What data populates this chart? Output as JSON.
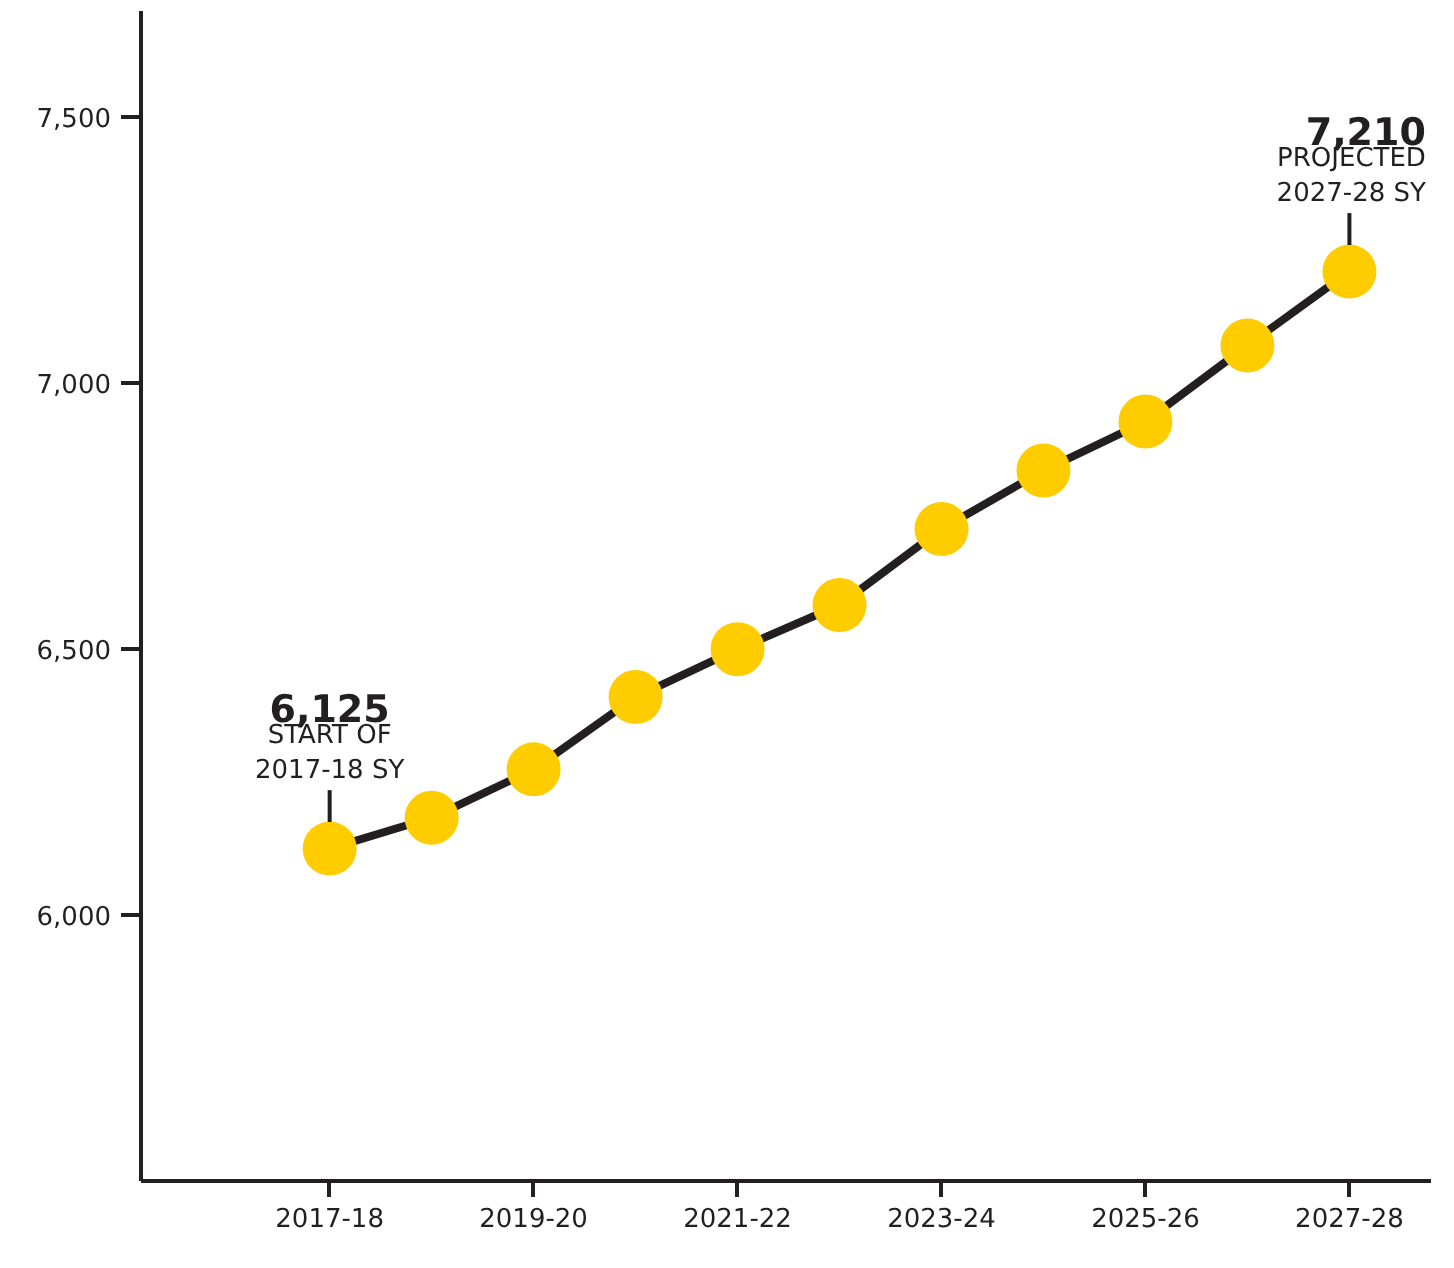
{
  "chart_data": {
    "type": "line",
    "categories": [
      "2017-18",
      null,
      "2019-20",
      null,
      "2021-22",
      null,
      "2023-24",
      null,
      "2025-26",
      null,
      "2027-28"
    ],
    "series": [
      {
        "color": "#231f20",
        "colors": [
          "#ffcc00",
          "#ffcc00",
          "#ffcc00",
          "#ffcc00",
          "#ffcc00",
          "#ffcc00",
          "#ffcc00",
          "#ffcc00",
          "#ffcc00",
          "#ffcc00",
          "#ffcc00"
        ],
        "values": [
          6125,
          6183,
          6274,
          6410,
          6500,
          6583,
          6726,
          6836,
          6928,
          7071,
          7210
        ]
      }
    ],
    "ylim": [
      5500,
      7700
    ],
    "yticks": [
      {
        "value": 6000,
        "label": "6,000"
      },
      {
        "value": 6500,
        "label": "6,500"
      },
      {
        "value": 7000,
        "label": "7,000"
      },
      {
        "value": 7500,
        "label": "7,500"
      }
    ],
    "grid": false,
    "marker": "circle",
    "line_style": "solid",
    "annotations": [
      {
        "text": "6,125\nSTART OF\n2017-18 SY",
        "x": "2017-18",
        "y": 6125
      },
      {
        "text": "7,210\nPROJECTED\n2027-28 SY",
        "x": "2027-28",
        "y": 7210
      }
    ]
  }
}
